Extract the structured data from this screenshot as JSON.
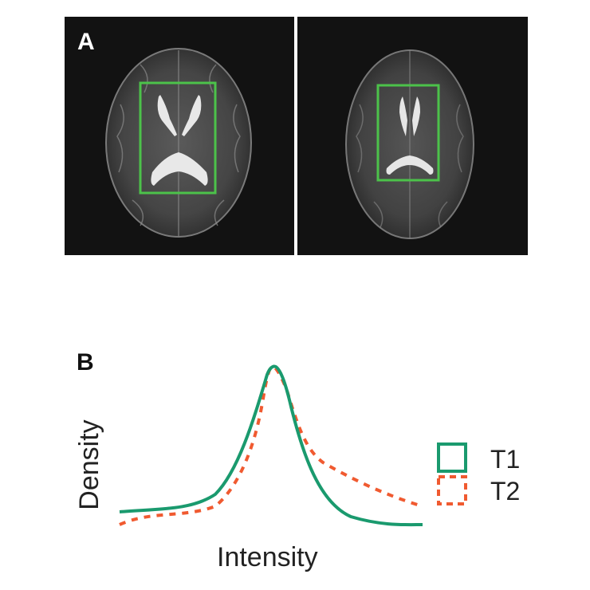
{
  "panels": {
    "a": {
      "label": "A"
    },
    "b": {
      "label": "B"
    }
  },
  "colors": {
    "roi_box": "#4cc24a",
    "t1": "#1a9a6e",
    "t2": "#f05a30"
  },
  "chart_data": {
    "type": "line",
    "xlabel": "Intensity",
    "ylabel": "Density",
    "legend": "right",
    "grid": false,
    "series": [
      {
        "name": "T1",
        "style": "solid",
        "color": "#1a9a6e"
      },
      {
        "name": "T2",
        "style": "dotted",
        "color": "#f05a30"
      }
    ]
  }
}
